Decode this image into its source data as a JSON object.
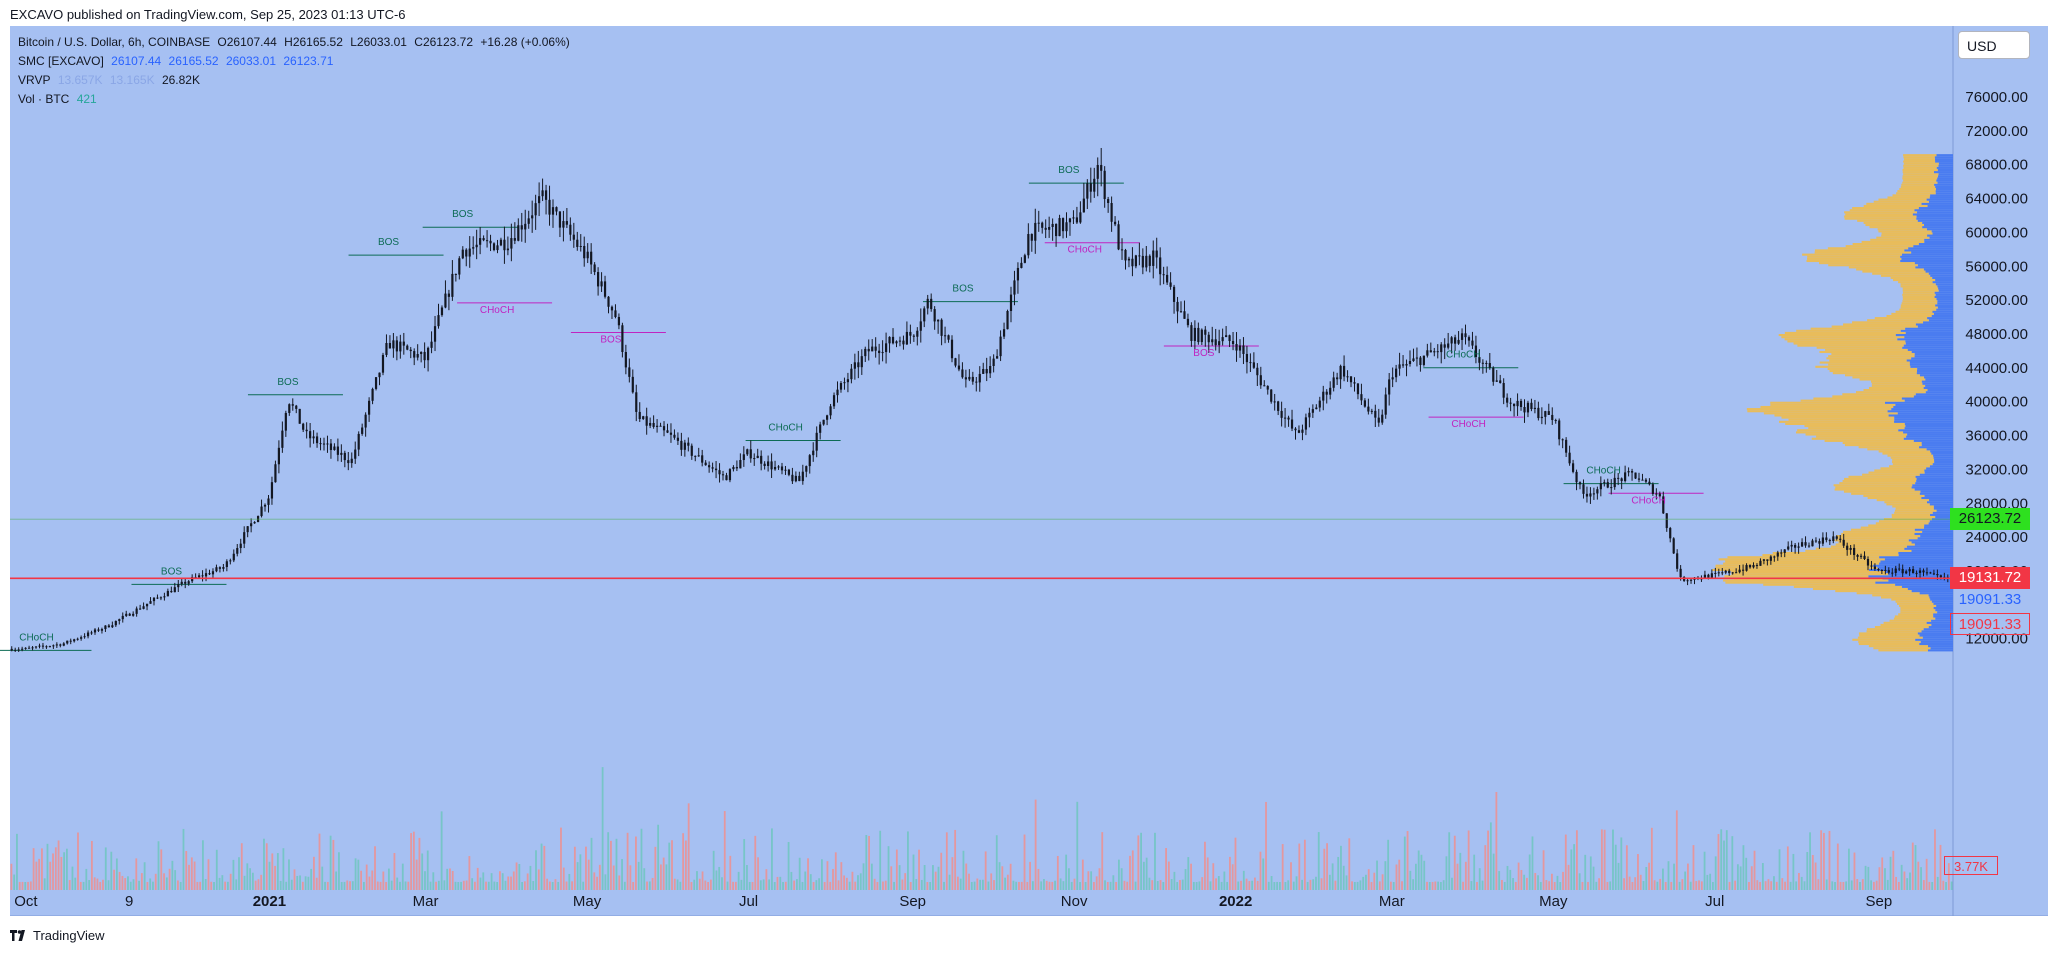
{
  "header": {
    "published": "EXCAVO published on TradingView.com, Sep 25, 2023 01:13 UTC-6"
  },
  "legend": {
    "symbol": {
      "label": "Bitcoin / U.S. Dollar, 6h, COINBASE",
      "o": "O26107.44",
      "h": "H26165.52",
      "l": "L26033.01",
      "c": "C26123.72",
      "chg": "+16.28 (+0.06%)"
    },
    "smc": {
      "label": "SMC [EXCAVO]",
      "v1": "26107.44",
      "v2": "26165.52",
      "v3": "26033.01",
      "v4": "26123.71"
    },
    "vrvp": {
      "label": "VRVP",
      "v1": "13.657K",
      "v2": "13.165K",
      "v3": "26.82K"
    },
    "vol": {
      "label": "Vol · BTC",
      "v1": "421"
    }
  },
  "currency_button": "USD",
  "price_tags": {
    "last": "26123.72",
    "red_line": "19131.72",
    "blue": "19091.33",
    "red_outline": "19091.33",
    "volume": "3.77K"
  },
  "footer": {
    "brand": "TradingView"
  },
  "chart_data": {
    "type": "line",
    "series": [],
    "x": [
      "2020-10-01",
      "2020-10-15",
      "2020-11-01",
      "2020-11-15",
      "2020-12-01",
      "2020-12-15",
      "2021-01-01",
      "2021-01-08",
      "2021-01-15",
      "2021-02-01",
      "2021-02-15",
      "2021-03-01",
      "2021-03-15",
      "2021-04-01",
      "2021-04-14",
      "2021-05-01",
      "2021-05-12",
      "2021-05-20",
      "2021-06-01",
      "2021-06-22",
      "2021-07-01",
      "2021-07-20",
      "2021-08-01",
      "2021-08-15",
      "2021-09-01",
      "2021-09-07",
      "2021-09-21",
      "2021-10-01",
      "2021-10-15",
      "2021-11-01",
      "2021-11-10",
      "2021-11-20",
      "2021-12-01",
      "2021-12-15",
      "2022-01-01",
      "2022-01-24",
      "2022-02-10",
      "2022-02-24",
      "2022-03-01",
      "2022-03-28",
      "2022-04-15",
      "2022-05-01",
      "2022-05-12",
      "2022-05-31",
      "2022-06-10",
      "2022-06-18",
      "2022-07-01",
      "2022-07-15",
      "2022-08-01",
      "2022-08-15",
      "2022-08-31",
      "2022-09-15",
      "2022-09-25"
    ],
    "y": [
      10800,
      11400,
      13500,
      16000,
      18800,
      20500,
      29000,
      40500,
      36000,
      33000,
      47000,
      45000,
      58000,
      59000,
      64000,
      57000,
      50000,
      38000,
      36000,
      31000,
      34000,
      30500,
      40000,
      46000,
      48000,
      52000,
      42000,
      44000,
      60000,
      61000,
      68000,
      56000,
      57000,
      48000,
      47000,
      36000,
      44000,
      37000,
      43500,
      47500,
      40000,
      38000,
      29000,
      31500,
      29000,
      19000,
      19500,
      20500,
      23000,
      24000,
      20000,
      20000,
      19000
    ],
    "ylim": [
      4000,
      80000
    ],
    "y_ticks": [
      "76000.00",
      "72000.00",
      "68000.00",
      "64000.00",
      "60000.00",
      "56000.00",
      "52000.00",
      "48000.00",
      "44000.00",
      "40000.00",
      "36000.00",
      "32000.00",
      "28000.00",
      "24000.00",
      "20000.00",
      "12000.00"
    ],
    "x_ticks": [
      "Oct",
      "9",
      "2021",
      "Mar",
      "May",
      "Jul",
      "Sep",
      "Nov",
      "2022",
      "Mar",
      "May",
      "Jul",
      "Sep"
    ],
    "annotations": [
      {
        "text": "CHoCH",
        "x": "2020-10-05",
        "y": 11800,
        "kind": "bull"
      },
      {
        "text": "BOS",
        "x": "2020-11-25",
        "y": 19600,
        "kind": "bull"
      },
      {
        "text": "BOS",
        "x": "2021-01-08",
        "y": 42000,
        "kind": "bull"
      },
      {
        "text": "BOS",
        "x": "2021-02-15",
        "y": 58500,
        "kind": "bull"
      },
      {
        "text": "BOS",
        "x": "2021-03-15",
        "y": 61800,
        "kind": "bull"
      },
      {
        "text": "CHoCH",
        "x": "2021-03-28",
        "y": 50500,
        "kind": "bear"
      },
      {
        "text": "BOS",
        "x": "2021-05-10",
        "y": 47000,
        "kind": "bear"
      },
      {
        "text": "CHoCH",
        "x": "2021-07-15",
        "y": 36600,
        "kind": "bull"
      },
      {
        "text": "BOS",
        "x": "2021-09-20",
        "y": 53000,
        "kind": "bull"
      },
      {
        "text": "BOS",
        "x": "2021-10-30",
        "y": 67000,
        "kind": "bull"
      },
      {
        "text": "CHoCH",
        "x": "2021-11-05",
        "y": 57600,
        "kind": "bear"
      },
      {
        "text": "BOS",
        "x": "2021-12-20",
        "y": 45400,
        "kind": "bear"
      },
      {
        "text": "CHoCH",
        "x": "2022-03-28",
        "y": 45200,
        "kind": "bull"
      },
      {
        "text": "CHoCH",
        "x": "2022-03-30",
        "y": 37000,
        "kind": "bear"
      },
      {
        "text": "CHoCH",
        "x": "2022-05-20",
        "y": 31500,
        "kind": "bull"
      },
      {
        "text": "CHoCH",
        "x": "2022-06-06",
        "y": 28000,
        "kind": "bear"
      }
    ],
    "horizontal_lines": [
      {
        "y": 19131.72,
        "color": "#f23645"
      },
      {
        "y": 26123.72,
        "color": "#4caf50"
      }
    ],
    "grid": false
  }
}
